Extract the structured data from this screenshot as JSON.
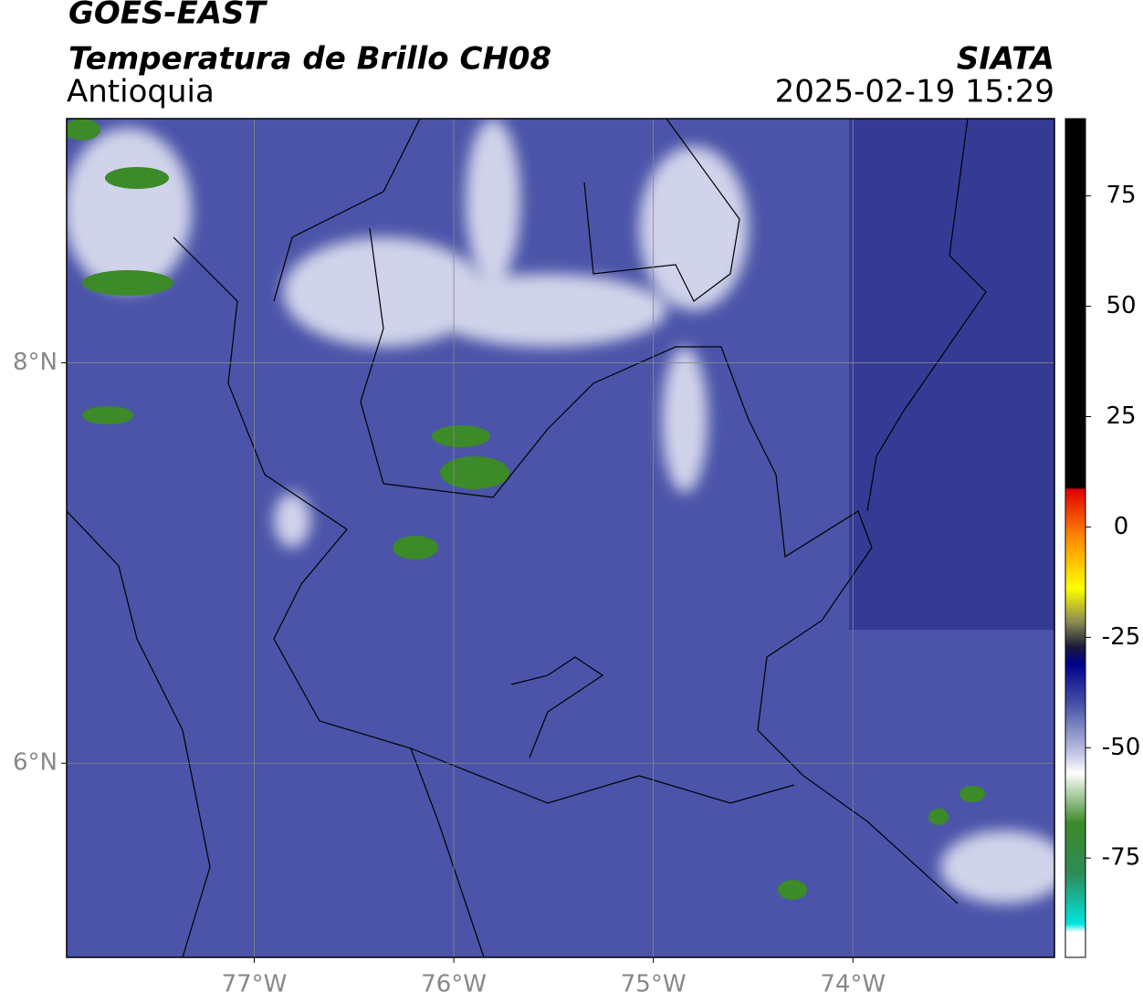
{
  "header": {
    "title": "GOES-EAST",
    "subtitle": "Temperatura de Brillo CH08",
    "region": "Antioquia",
    "source": "SIATA",
    "datetime": "2025-02-19 15:29"
  },
  "map": {
    "xlim": [
      -77.94,
      -72.99
    ],
    "ylim": [
      5.03,
      9.22
    ],
    "xticks": [
      {
        "value": -77,
        "label": "77°W"
      },
      {
        "value": -76,
        "label": "76°W"
      },
      {
        "value": -75,
        "label": "75°W"
      },
      {
        "value": -74,
        "label": "74°W"
      }
    ],
    "yticks": [
      {
        "value": 8,
        "label": "8°N"
      },
      {
        "value": 6,
        "label": "6°N"
      }
    ]
  },
  "colorbar": {
    "lim": [
      -97.5,
      92.5
    ],
    "ticks": [
      75,
      50,
      25,
      0,
      -25,
      -50,
      -75
    ]
  }
}
